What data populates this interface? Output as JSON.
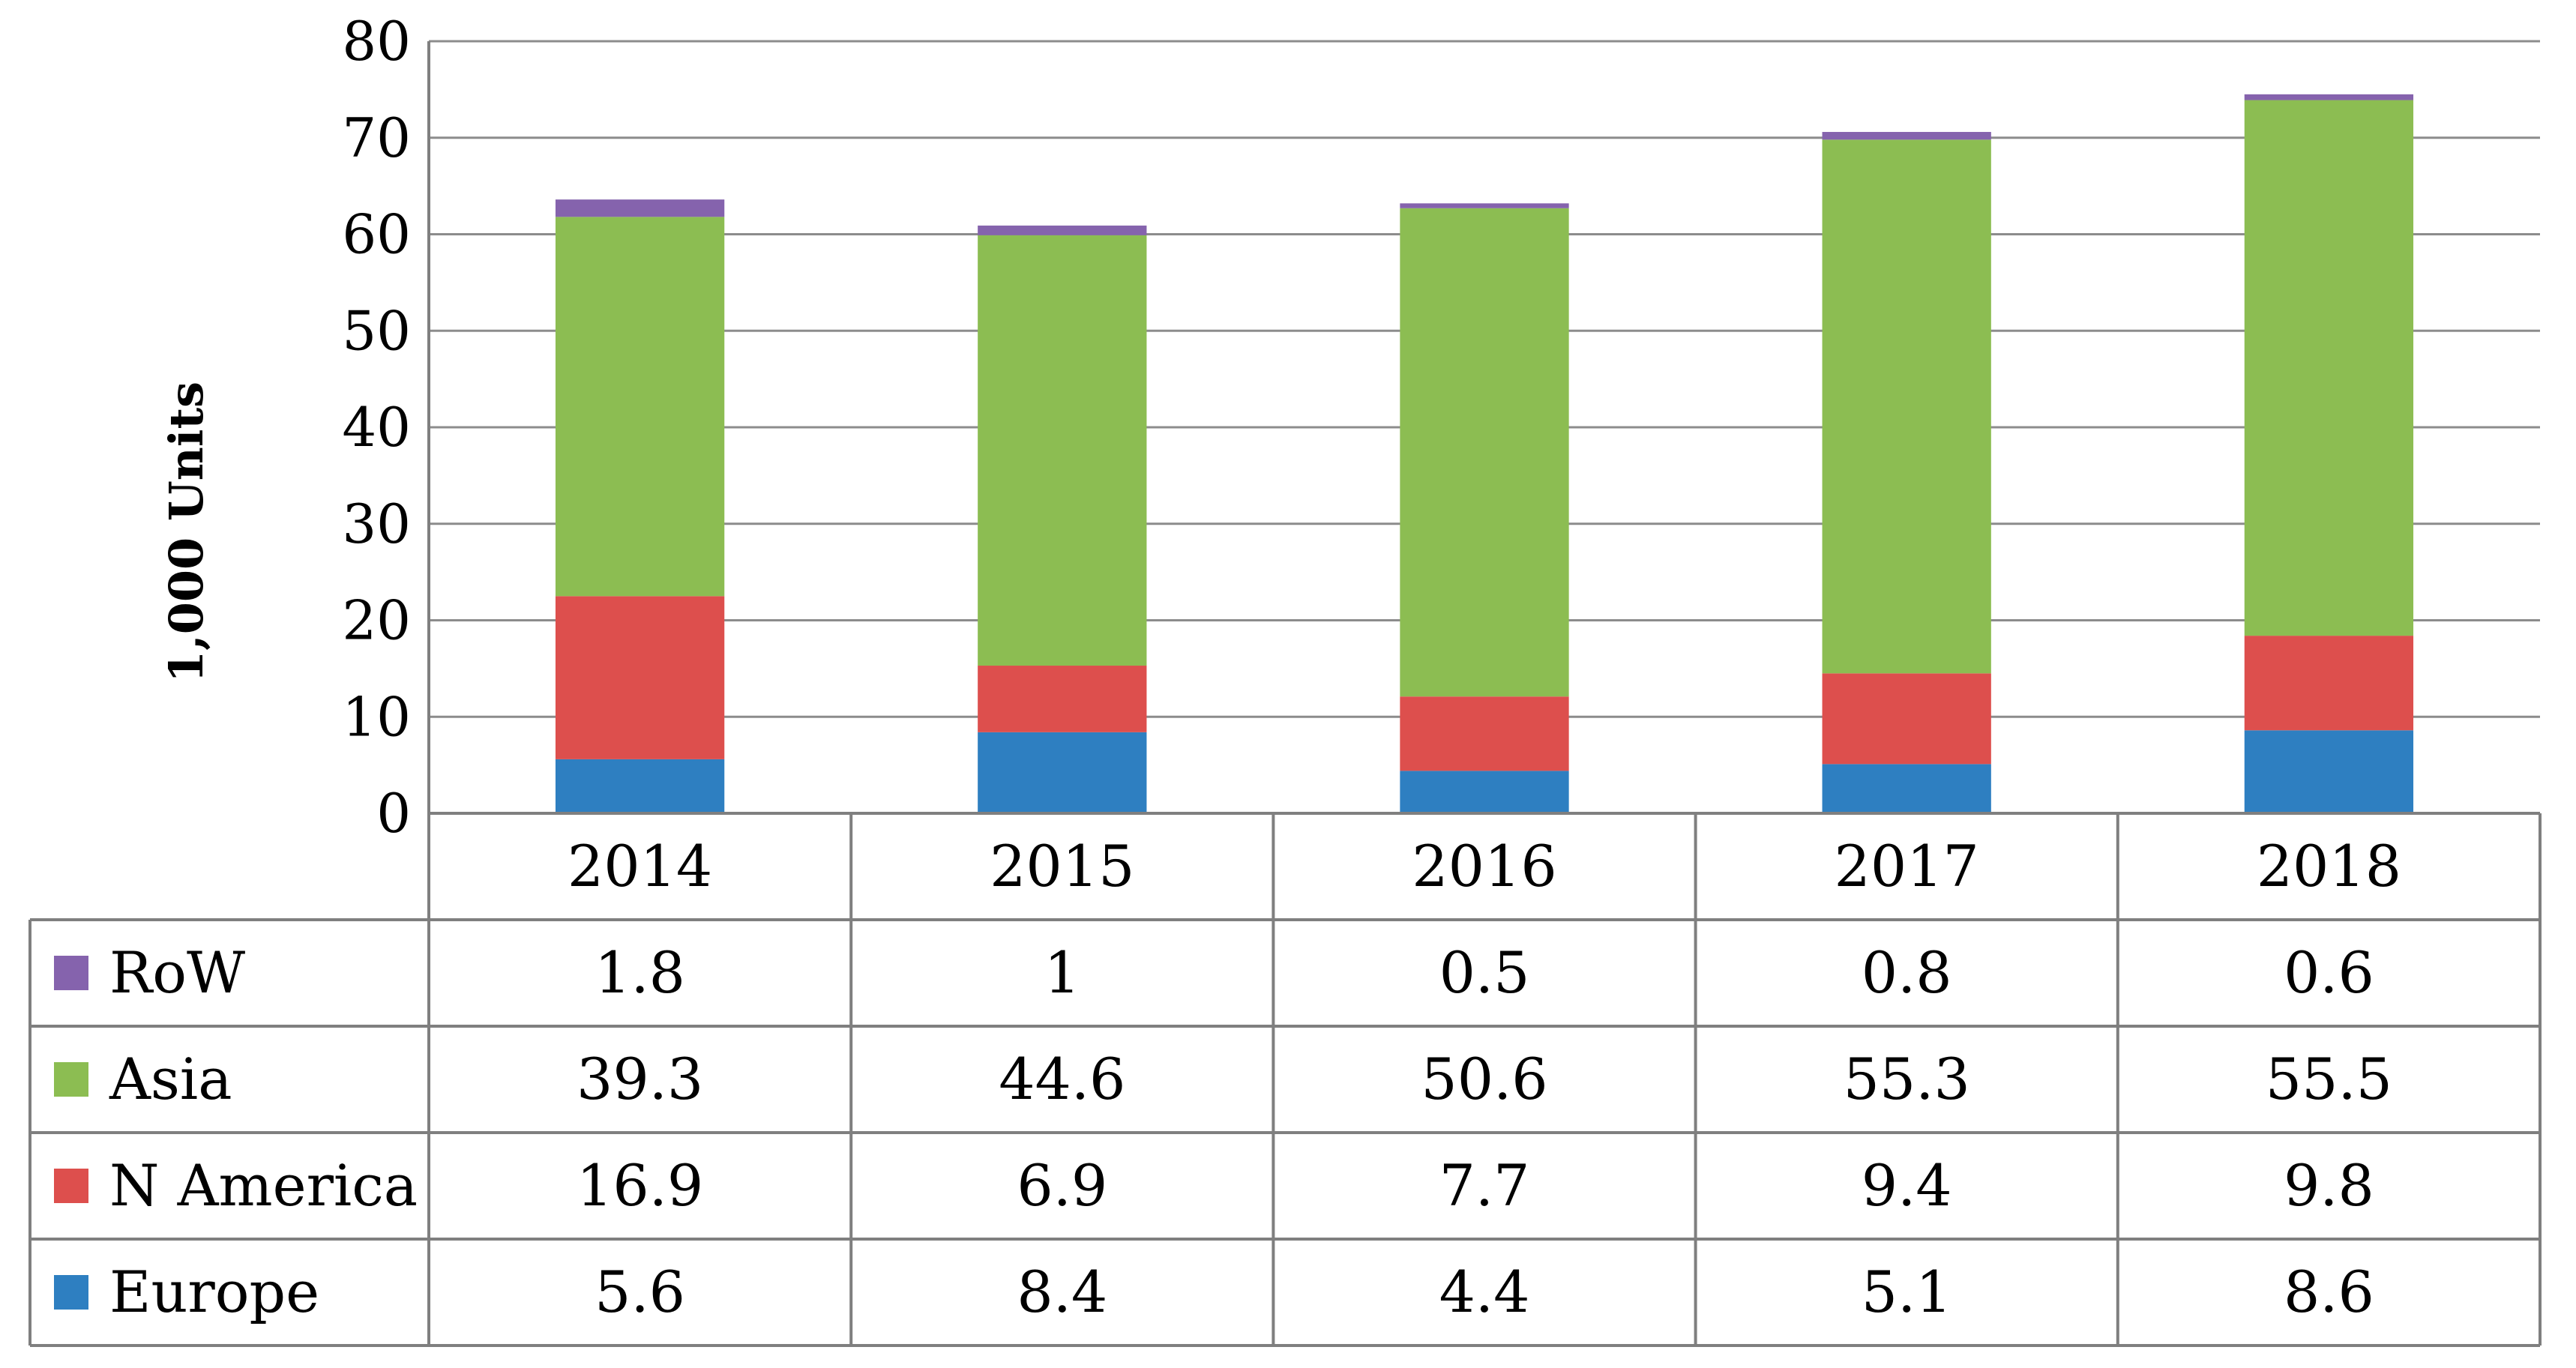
{
  "chart_data": {
    "type": "bar",
    "stacked": true,
    "ylabel": "1,000 Units",
    "ylim": [
      0,
      80
    ],
    "yticks": [
      0,
      10,
      20,
      30,
      40,
      50,
      60,
      70,
      80
    ],
    "grid": true,
    "legend": "data-table",
    "categories": [
      "2014",
      "2015",
      "2016",
      "2017",
      "2018"
    ],
    "series": [
      {
        "name": "Europe",
        "color": "#2e7fc1",
        "values": [
          5.6,
          8.4,
          4.4,
          5.1,
          8.6
        ],
        "labels": [
          "5.6",
          "8.4",
          "4.4",
          "5.1",
          "8.6"
        ]
      },
      {
        "name": "N America",
        "color": "#dd4f4d",
        "values": [
          16.9,
          6.9,
          7.7,
          9.4,
          9.8
        ],
        "labels": [
          "16.9",
          "6.9",
          "7.7",
          "9.4",
          "9.8"
        ]
      },
      {
        "name": "Asia",
        "color": "#8cbd52",
        "values": [
          39.3,
          44.6,
          50.6,
          55.3,
          55.5
        ],
        "labels": [
          "39.3",
          "44.6",
          "50.6",
          "55.3",
          "55.5"
        ]
      },
      {
        "name": "RoW",
        "color": "#8563ad",
        "values": [
          1.8,
          1,
          0.5,
          0.8,
          0.6
        ],
        "labels": [
          "1.8",
          "1",
          "0.5",
          "0.8",
          "0.6"
        ]
      }
    ]
  }
}
